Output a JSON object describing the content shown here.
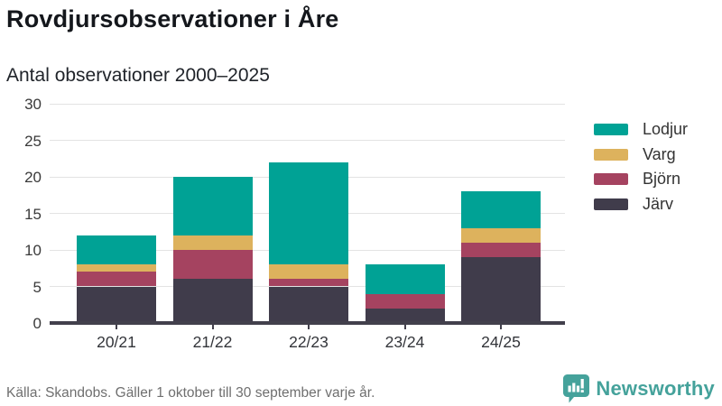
{
  "header": {
    "title": "Rovdjursobservationer i Åre",
    "subtitle": "Antal observationer 2000–2025"
  },
  "footer": {
    "source": "Källa: Skandobs. Gäller 1 oktober till 30 september varje år.",
    "brand": "Newsworthy"
  },
  "colors": {
    "lodjur": "#00a295",
    "varg": "#ddb25d",
    "bjorn": "#a54360",
    "jarv": "#403c4b",
    "gridline": "#e3e3e3",
    "axis": "#42404c",
    "brand_teal": "#45a29b"
  },
  "chart_data": {
    "type": "bar",
    "stacked": true,
    "title": "Rovdjursobservationer i Åre",
    "subtitle": "Antal observationer 2000–2025",
    "categories": [
      "20/21",
      "21/22",
      "22/23",
      "23/24",
      "24/25"
    ],
    "series": [
      {
        "name": "Järv",
        "color": "#403c4b",
        "values": [
          5,
          6,
          5,
          2,
          9
        ]
      },
      {
        "name": "Björn",
        "color": "#a54360",
        "values": [
          2,
          4,
          1,
          2,
          2
        ]
      },
      {
        "name": "Varg",
        "color": "#ddb25d",
        "values": [
          1,
          2,
          2,
          0,
          2
        ]
      },
      {
        "name": "Lodjur",
        "color": "#00a295",
        "values": [
          4,
          8,
          14,
          4,
          5
        ]
      }
    ],
    "totals": [
      12,
      20,
      22,
      8,
      18
    ],
    "legend_order": [
      "Lodjur",
      "Varg",
      "Björn",
      "Järv"
    ],
    "legend_position": "right",
    "xlabel": "",
    "ylabel": "",
    "ylim": [
      0,
      30
    ],
    "ytick_step": 5,
    "grid": true
  }
}
